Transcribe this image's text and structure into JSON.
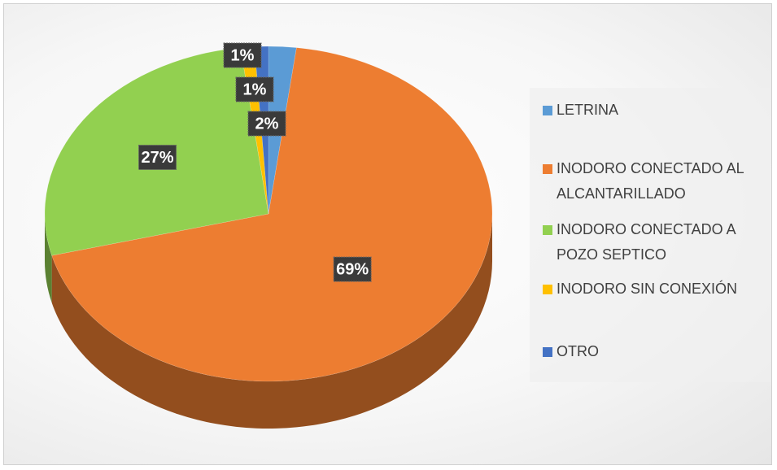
{
  "chart_data": {
    "type": "pie",
    "categories": [
      "LETRINA",
      "INODORO CONECTADO AL ALCANTARILLADO",
      "INODORO CONECTADO A POZO SEPTICO",
      "INODORO SIN CONEXIÓN",
      "OTRO"
    ],
    "values": [
      2,
      69,
      27,
      1,
      1
    ],
    "value_labels": [
      "2%",
      "69%",
      "27%",
      "1%",
      "1%"
    ],
    "colors": [
      "#5b9bd5",
      "#ed7d31",
      "#92d050",
      "#ffc000",
      "#4472c4"
    ],
    "legend": "right"
  }
}
